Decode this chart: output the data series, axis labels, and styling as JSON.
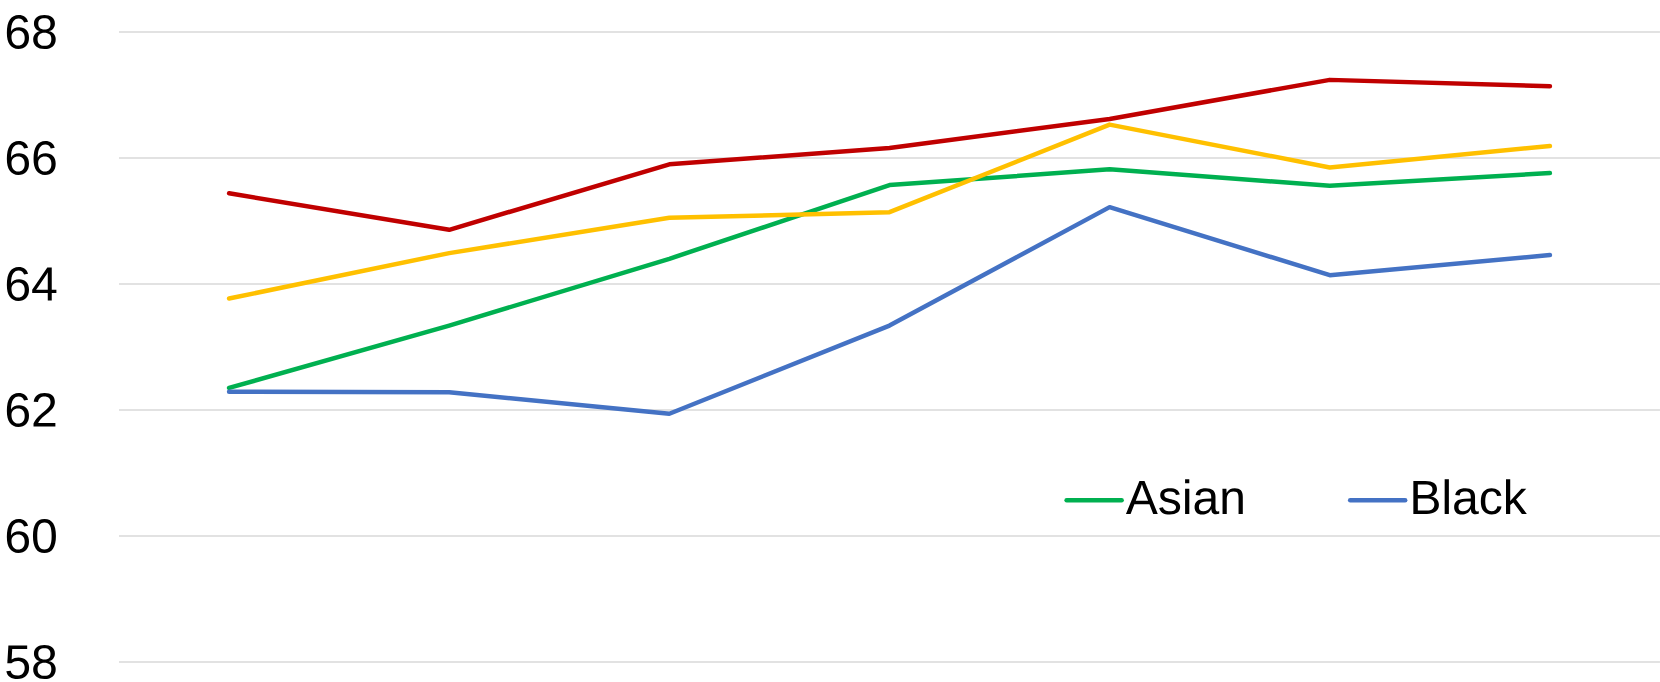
{
  "chart_data": {
    "type": "line",
    "categories": [
      null,
      null,
      null,
      null,
      null,
      null,
      null
    ],
    "series": [
      {
        "name": "Asian",
        "color": "#00b050",
        "values": [
          62.35,
          63.34,
          64.4,
          65.57,
          65.82,
          65.56,
          65.76
        ]
      },
      {
        "name": "Black",
        "color": "#4472c4",
        "values": [
          62.29,
          62.28,
          61.94,
          63.34,
          65.22,
          64.14,
          64.46
        ]
      },
      {
        "color": "#c00000",
        "values": [
          65.44,
          64.86,
          65.9,
          66.16,
          66.62,
          67.24,
          67.14
        ]
      },
      {
        "color": "#ffc000",
        "values": [
          63.77,
          64.49,
          65.05,
          65.14,
          66.53,
          65.85,
          66.19
        ]
      }
    ],
    "ylim": [
      58,
      68
    ],
    "yticks": [
      58,
      60,
      62,
      64,
      66,
      68
    ],
    "grid": "y",
    "legend": "bottom right",
    "tick_labels": "y",
    "marker": "none",
    "line_style": "solid"
  }
}
